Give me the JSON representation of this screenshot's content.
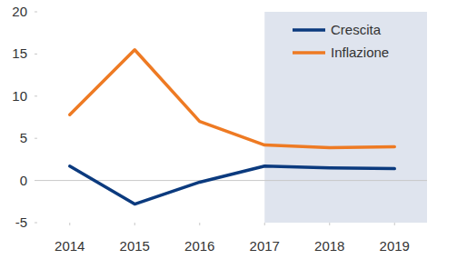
{
  "chart_data": {
    "type": "line",
    "x": [
      2014,
      2015,
      2016,
      2017,
      2018,
      2019
    ],
    "series": [
      {
        "name": "Crescita",
        "color": "#0b3a7e",
        "values": [
          1.7,
          -2.8,
          -0.2,
          1.7,
          1.5,
          1.4
        ]
      },
      {
        "name": "Inflazione",
        "color": "#ee7a23",
        "values": [
          7.8,
          15.5,
          7.0,
          4.2,
          3.9,
          4.0
        ]
      }
    ],
    "xlim": [
      2013.5,
      2019.5
    ],
    "xticks": [
      2014,
      2015,
      2016,
      2017,
      2018,
      2019
    ],
    "ylim": [
      -5,
      20
    ],
    "yticks": [
      -5,
      0,
      5,
      10,
      15,
      20
    ],
    "shaded_from": 2017,
    "legend": "top-right",
    "grid": false
  }
}
